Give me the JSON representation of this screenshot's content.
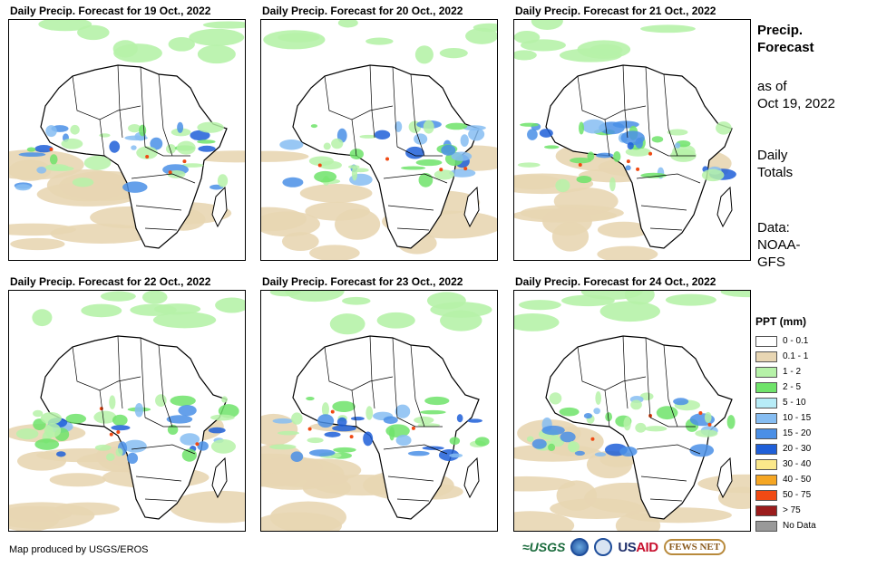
{
  "panels": [
    {
      "title": "Daily Precip. Forecast for 19 Oct., 2022"
    },
    {
      "title": "Daily Precip. Forecast for 20 Oct., 2022"
    },
    {
      "title": "Daily Precip. Forecast for 21 Oct., 2022"
    },
    {
      "title": "Daily Precip. Forecast for 22 Oct., 2022"
    },
    {
      "title": "Daily Precip. Forecast for 23 Oct., 2022"
    },
    {
      "title": "Daily Precip. Forecast for 24 Oct., 2022"
    }
  ],
  "side": {
    "title_line1": "Precip.",
    "title_line2": "Forecast",
    "asof_line1": "as of",
    "asof_line2": "Oct 19, 2022",
    "totals_line1": "Daily",
    "totals_line2": "Totals",
    "data_line1": "Data:",
    "data_line2": "NOAA-",
    "data_line3": "GFS"
  },
  "legend": {
    "title": "PPT (mm)",
    "items": [
      {
        "label": "0 - 0.1",
        "color": "#ffffff"
      },
      {
        "label": "0.1 - 1",
        "color": "#e8d6b3"
      },
      {
        "label": "1 - 2",
        "color": "#b6f2a8"
      },
      {
        "label": "2 - 5",
        "color": "#6fe36a"
      },
      {
        "label": "5 - 10",
        "color": "#b7ecf7"
      },
      {
        "label": "10 - 15",
        "color": "#86bdf2"
      },
      {
        "label": "15 - 20",
        "color": "#4a8fe6"
      },
      {
        "label": "20 - 30",
        "color": "#1f5fd8"
      },
      {
        "label": "30 - 40",
        "color": "#fbe88a"
      },
      {
        "label": "40 - 50",
        "color": "#f5a623"
      },
      {
        "label": "50 - 75",
        "color": "#f04a14"
      },
      {
        "label": "> 75",
        "color": "#9b1c1c"
      },
      {
        "label": "No Data",
        "color": "#999999"
      }
    ]
  },
  "footer": {
    "credit": "Map produced by USGS/EROS"
  },
  "logos": {
    "usgs": "≈USGS",
    "usaid_a": "US",
    "usaid_b": "AID",
    "fews": "FEWS NET"
  }
}
